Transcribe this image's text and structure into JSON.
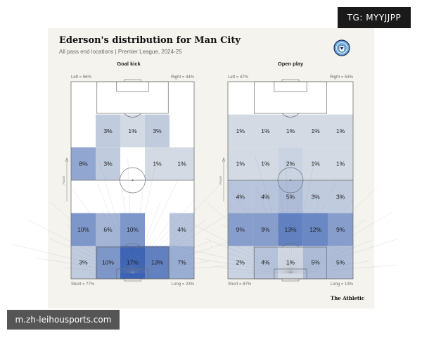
{
  "overlay": {
    "badge_text": "TG: MYYJJPP",
    "watermark_text": "m.zh-leihousports.com"
  },
  "header": {
    "title": "Ederson's distribution for Man City",
    "subtitle": "All pass end locations | Premier League, 2024-25",
    "brand": "The Athletic",
    "crest_icon": "man-city-crest-icon"
  },
  "colors": {
    "card_bg": "#f4f3ee",
    "cell_max": "#3a62b5",
    "line": "#6f6f6f"
  },
  "chart_data": [
    {
      "type": "heatmap",
      "title": "Goal kick",
      "labels": {
        "left": "Left = 56%",
        "right": "Right = 44%",
        "short": "Short = 77%",
        "long": "Long = 23%",
        "attack": "Attack"
      },
      "rows": [
        [
          "",
          "",
          "",
          "",
          ""
        ],
        [
          "",
          "3%",
          "1%",
          "3%",
          ""
        ],
        [
          "8%",
          "3%",
          "",
          "1%",
          "1%"
        ],
        [
          "",
          "",
          "",
          "",
          ""
        ],
        [
          "10%",
          "6%",
          "10%",
          "",
          "4%"
        ],
        [
          "3%",
          "10%",
          "17%",
          "13%",
          "7%"
        ]
      ],
      "values": [
        [
          0,
          0,
          0,
          0,
          0
        ],
        [
          0,
          3,
          1,
          3,
          0
        ],
        [
          8,
          3,
          0,
          1,
          1
        ],
        [
          0,
          0,
          0,
          0,
          0
        ],
        [
          10,
          6,
          10,
          0,
          4
        ],
        [
          3,
          10,
          17,
          13,
          7
        ]
      ]
    },
    {
      "type": "heatmap",
      "title": "Open play",
      "labels": {
        "left": "Left = 47%",
        "right": "Right = 53%",
        "short": "Short = 87%",
        "long": "Long = 13%",
        "attack": "Attack"
      },
      "rows": [
        [
          "",
          "",
          "",
          "",
          ""
        ],
        [
          "1%",
          "1%",
          "1%",
          "1%",
          "1%"
        ],
        [
          "1%",
          "1%",
          "2%",
          "1%",
          "1%"
        ],
        [
          "4%",
          "4%",
          "5%",
          "3%",
          "3%"
        ],
        [
          "9%",
          "9%",
          "13%",
          "12%",
          "9%"
        ],
        [
          "2%",
          "4%",
          "1%",
          "5%",
          "5%"
        ]
      ],
      "values": [
        [
          0,
          0,
          0,
          0,
          0
        ],
        [
          1,
          1,
          1,
          1,
          1
        ],
        [
          1,
          1,
          2,
          1,
          1
        ],
        [
          4,
          4,
          5,
          3,
          3
        ],
        [
          9,
          9,
          13,
          12,
          9
        ],
        [
          2,
          4,
          1,
          5,
          5
        ]
      ]
    }
  ]
}
